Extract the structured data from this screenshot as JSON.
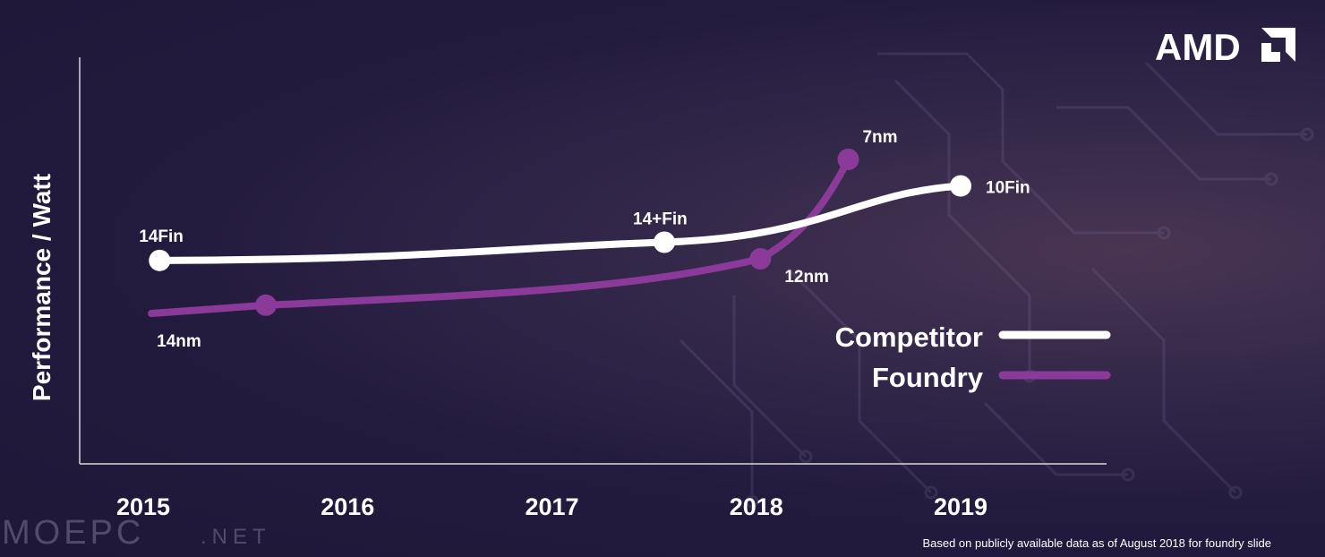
{
  "logo": {
    "text": "AMD"
  },
  "watermark": {
    "main": "MOEPC",
    "suffix": ".NET"
  },
  "footnote": "Based on publicly available data as of August 2018 for foundry slide",
  "chart_data": {
    "type": "line",
    "title": "",
    "xlabel": "",
    "ylabel": "Performance / Watt",
    "categories": [
      "2015",
      "2016",
      "2017",
      "2018",
      "2019"
    ],
    "xlim": [
      2015,
      2019
    ],
    "legend_position": "right",
    "series": [
      {
        "name": "Competitor",
        "color": "#ffffff",
        "points": [
          {
            "x": 2015.08,
            "y": 3.95,
            "label": "14Fin"
          },
          {
            "x": 2017.55,
            "y": 4.5,
            "label": "14+Fin"
          },
          {
            "x": 2019.0,
            "y": 6.2,
            "label": "10Fin"
          }
        ]
      },
      {
        "name": "Foundry",
        "color": "#8b3a9a",
        "points": [
          {
            "x": 2015.6,
            "y": 2.6,
            "label": "14nm"
          },
          {
            "x": 2018.02,
            "y": 4.0,
            "label": "12nm"
          },
          {
            "x": 2018.45,
            "y": 7.0,
            "label": "7nm"
          }
        ]
      }
    ]
  }
}
